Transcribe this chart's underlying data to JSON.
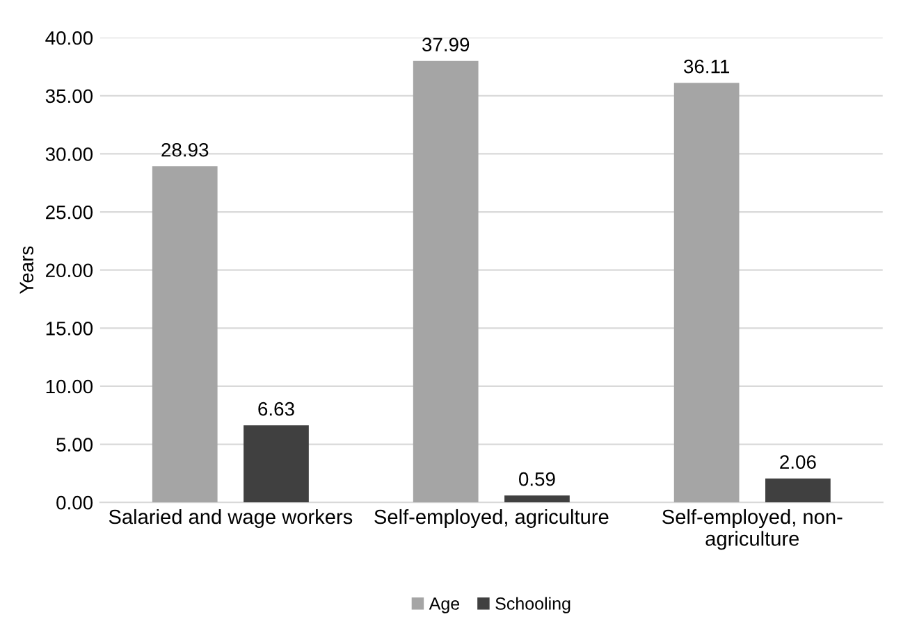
{
  "chart_data": {
    "type": "bar",
    "ylabel": "Years",
    "categories": [
      "Salaried and wage workers",
      "Self-employed, agriculture",
      "Self-employed, non-agriculture"
    ],
    "series": [
      {
        "name": "Age",
        "color": "#a5a5a5",
        "values": [
          28.93,
          37.99,
          36.11
        ]
      },
      {
        "name": "Schooling",
        "color": "#404040",
        "values": [
          6.63,
          0.59,
          2.06
        ]
      }
    ],
    "ylim": [
      0,
      40
    ],
    "yticks": [
      {
        "value": 0,
        "label": "0.00"
      },
      {
        "value": 5,
        "label": "5.00"
      },
      {
        "value": 10,
        "label": "10.00"
      },
      {
        "value": 15,
        "label": "15.00"
      },
      {
        "value": 20,
        "label": "20.00"
      },
      {
        "value": 25,
        "label": "25.00"
      },
      {
        "value": 30,
        "label": "30.00"
      },
      {
        "value": 35,
        "label": "35.00"
      },
      {
        "value": 40,
        "label": "40.00"
      }
    ],
    "grid": "y",
    "legend": "bottom",
    "data_labels": true
  }
}
